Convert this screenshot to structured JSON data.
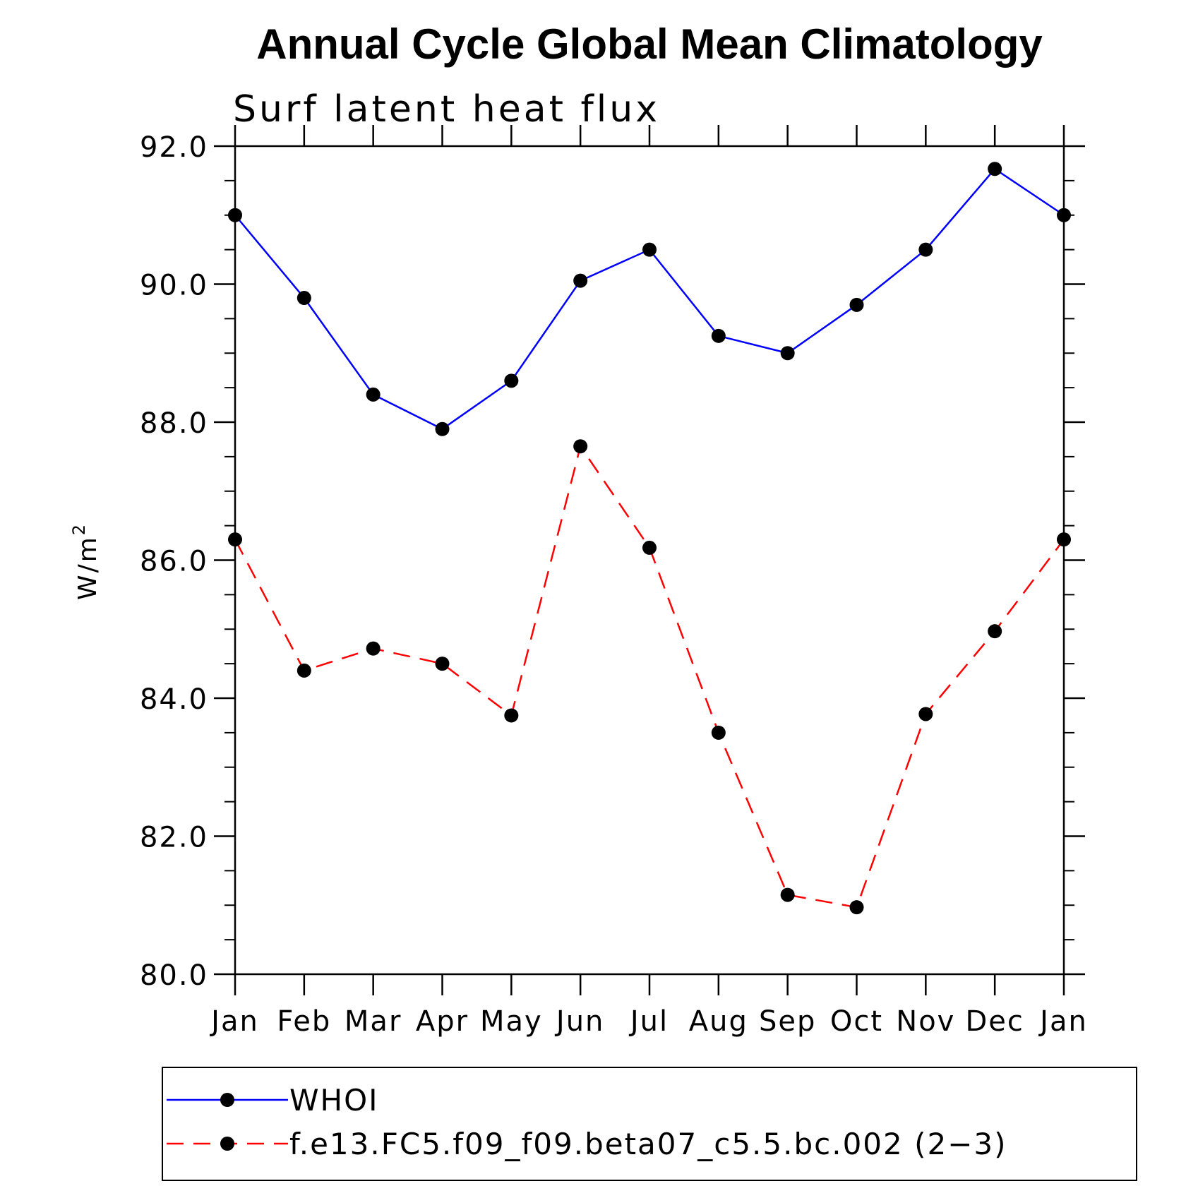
{
  "chart_data": {
    "type": "line",
    "title": "Annual Cycle Global Mean Climatology",
    "subtitle": "Surf latent heat flux",
    "ylabel": "W/m",
    "ylabel_sup": "2",
    "ylim": [
      80.0,
      92.0
    ],
    "y_major_ticks": [
      80.0,
      82.0,
      84.0,
      86.0,
      88.0,
      90.0,
      92.0
    ],
    "y_tick_labels": [
      "80.0",
      "82.0",
      "84.0",
      "86.0",
      "88.0",
      "90.0",
      "92.0"
    ],
    "categories": [
      "Jan",
      "Feb",
      "Mar",
      "Apr",
      "May",
      "Jun",
      "Jul",
      "Aug",
      "Sep",
      "Oct",
      "Nov",
      "Dec",
      "Jan"
    ],
    "legend_position": "bottom",
    "grid": false,
    "series": [
      {
        "name": "WHOI",
        "color": "#0000ff",
        "dashed": false,
        "marker": "filled-circle",
        "values": [
          91.0,
          89.8,
          88.4,
          87.9,
          88.6,
          90.05,
          90.5,
          89.25,
          89.0,
          89.7,
          90.5,
          91.67,
          91.0
        ]
      },
      {
        "name": "f.e13.FC5.f09_f09.beta07_c5.5.bc.002 (2−3)",
        "color": "#ff0000",
        "dashed": true,
        "marker": "filled-circle",
        "values": [
          86.3,
          84.4,
          84.72,
          84.5,
          83.75,
          87.65,
          86.18,
          83.5,
          81.15,
          80.97,
          83.77,
          84.97,
          86.3
        ]
      }
    ]
  }
}
